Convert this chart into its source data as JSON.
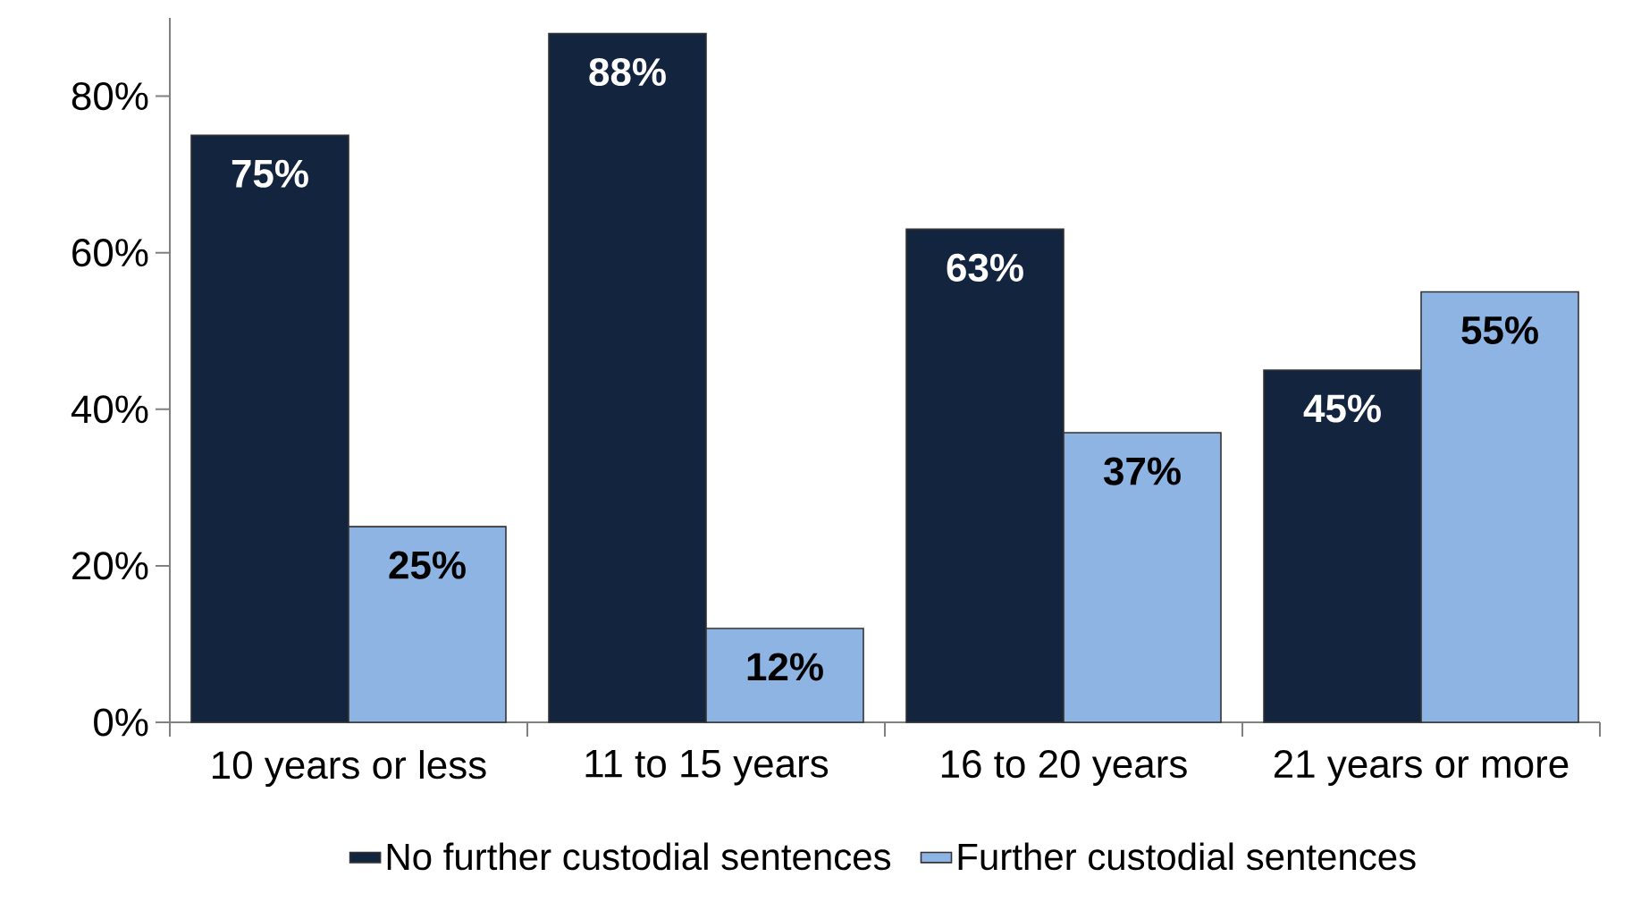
{
  "chart_data": {
    "type": "bar",
    "categories": [
      "10 years or less",
      "11 to 15 years",
      "16 to 20 years",
      "21 years or more"
    ],
    "series": [
      {
        "name": "No further custodial sentences",
        "color": "#13243f",
        "values": [
          75,
          88,
          63,
          45
        ],
        "value_labels": [
          "75%",
          "88%",
          "63%",
          "45%"
        ]
      },
      {
        "name": "Further custodial sentences",
        "color": "#8eb4e3",
        "values": [
          25,
          12,
          37,
          55
        ],
        "value_labels": [
          "25%",
          "12%",
          "37%",
          "55%"
        ]
      }
    ],
    "ylim": [
      0,
      90
    ],
    "yticks": [
      {
        "value": 0,
        "label": "0%"
      },
      {
        "value": 20,
        "label": "20%"
      },
      {
        "value": 40,
        "label": "40%"
      },
      {
        "value": 60,
        "label": "60%"
      },
      {
        "value": 80,
        "label": "80%"
      }
    ],
    "grid": false,
    "legend": "bottom"
  }
}
